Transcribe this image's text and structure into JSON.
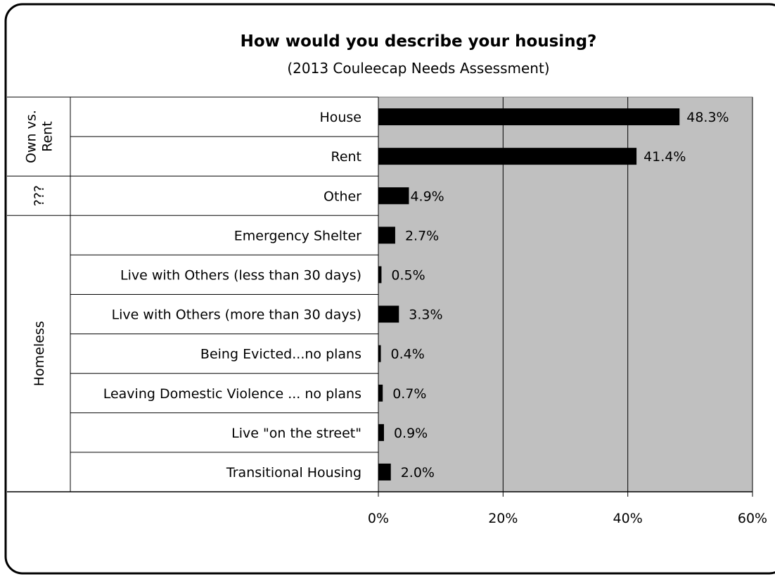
{
  "chart_data": {
    "type": "bar",
    "orientation": "horizontal",
    "title": "How would you describe your housing?",
    "subtitle": "(2013 Couleecap Needs Assessment)",
    "xlim": [
      0,
      60
    ],
    "x_ticks": [
      0,
      20,
      40,
      60
    ],
    "x_tick_labels": [
      "0%",
      "20%",
      "40%",
      "60%"
    ],
    "grid": "vertical",
    "legend": "none",
    "categories": [
      "House",
      "Rent",
      "Other",
      "Emergency Shelter",
      "Live with Others (less than 30 days)",
      "Live with Others (more than 30 days)",
      "Being Evicted...no plans",
      "Leaving Domestic Violence ... no plans",
      "Live \"on the street\"",
      "Transitional Housing"
    ],
    "values": [
      48.3,
      41.4,
      4.9,
      2.7,
      0.5,
      3.3,
      0.4,
      0.7,
      0.9,
      2.0
    ],
    "value_labels": [
      "48.3%",
      "41.4%",
      "4.9%",
      "2.7%",
      "0.5%",
      "3.3%",
      "0.4%",
      "0.7%",
      "0.9%",
      "2.0%"
    ],
    "groups": [
      {
        "label_lines": [
          "Own vs.",
          "Rent"
        ],
        "start": 0,
        "end": 1
      },
      {
        "label_lines": [
          "???"
        ],
        "start": 2,
        "end": 2
      },
      {
        "label_lines": [
          "Homeless"
        ],
        "start": 3,
        "end": 9
      }
    ],
    "colors": {
      "bar": "#000000",
      "plot_background": "#c0c0c0",
      "gridline": "#000000"
    }
  }
}
